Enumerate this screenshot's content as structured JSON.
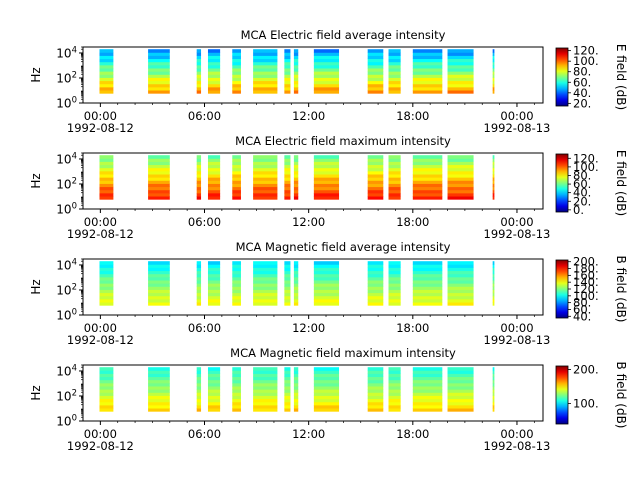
{
  "chart_data": [
    {
      "type": "heatmap",
      "title": "MCA  Electric field average intensity",
      "ylabel": "Hz",
      "y_scale": "log",
      "ylim": [
        1,
        30000
      ],
      "y_ticks": [
        {
          "value": 1,
          "base": "10",
          "exp": "0"
        },
        {
          "value": 100,
          "base": "10",
          "exp": "2"
        },
        {
          "value": 10000,
          "base": "10",
          "exp": "4"
        }
      ],
      "x_ticks": [
        "00:00",
        "06:00",
        "12:00",
        "18:00",
        "00:00"
      ],
      "date_labels": [
        "1992-08-12",
        "1992-08-13"
      ],
      "xlim_hours": [
        -1,
        25.5
      ],
      "colorbar": {
        "label": "E field (dB)",
        "range": [
          15,
          125
        ],
        "ticks": [
          "20.",
          "40.",
          "60.",
          "80.",
          "100.",
          "120."
        ],
        "tick_values": [
          20,
          40,
          60,
          80,
          100,
          120
        ]
      },
      "data_segments_hours": [
        [
          -0.05,
          0.75
        ],
        [
          2.75,
          4.0
        ],
        [
          5.55,
          5.8
        ],
        [
          6.2,
          6.9
        ],
        [
          7.6,
          8.1
        ],
        [
          8.8,
          10.2
        ],
        [
          10.6,
          10.95
        ],
        [
          11.15,
          11.4
        ],
        [
          12.3,
          13.75
        ],
        [
          15.4,
          16.3
        ],
        [
          16.6,
          17.3
        ],
        [
          18.0,
          19.7
        ],
        [
          20.0,
          21.5
        ],
        [
          22.6,
          22.7
        ]
      ],
      "intensity_profile": {
        "low_freq_db": 95,
        "mid_freq_db": 70,
        "high_freq_db": 45
      }
    },
    {
      "type": "heatmap",
      "title": "MCA  Electric field maximum intensity",
      "ylabel": "Hz",
      "y_scale": "log",
      "ylim": [
        1,
        30000
      ],
      "y_ticks": [
        {
          "value": 1,
          "base": "10",
          "exp": "0"
        },
        {
          "value": 100,
          "base": "10",
          "exp": "2"
        },
        {
          "value": 10000,
          "base": "10",
          "exp": "4"
        }
      ],
      "x_ticks": [
        "00:00",
        "06:00",
        "12:00",
        "18:00",
        "00:00"
      ],
      "date_labels": [
        "1992-08-12",
        "1992-08-13"
      ],
      "xlim_hours": [
        -1,
        25.5
      ],
      "colorbar": {
        "label": "E field (dB)",
        "range": [
          -5,
          130
        ],
        "ticks": [
          "0.",
          "20.",
          "40.",
          "60.",
          "80.",
          "100.",
          "120."
        ],
        "tick_values": [
          0,
          20,
          40,
          60,
          80,
          100,
          120
        ]
      },
      "data_segments_hours": [
        [
          -0.05,
          0.75
        ],
        [
          2.75,
          4.0
        ],
        [
          5.55,
          5.8
        ],
        [
          6.2,
          6.9
        ],
        [
          7.6,
          8.1
        ],
        [
          8.8,
          10.2
        ],
        [
          10.6,
          10.95
        ],
        [
          11.15,
          11.4
        ],
        [
          12.3,
          13.75
        ],
        [
          15.4,
          16.3
        ],
        [
          16.6,
          17.3
        ],
        [
          18.0,
          19.7
        ],
        [
          20.0,
          21.5
        ],
        [
          22.6,
          22.7
        ]
      ],
      "intensity_profile": {
        "low_freq_db": 110,
        "mid_freq_db": 85,
        "high_freq_db": 60
      }
    },
    {
      "type": "heatmap",
      "title": "MCA  Magnetic field average intensity",
      "ylabel": "Hz",
      "y_scale": "log",
      "ylim": [
        1,
        30000
      ],
      "y_ticks": [
        {
          "value": 1,
          "base": "10",
          "exp": "0"
        },
        {
          "value": 100,
          "base": "10",
          "exp": "2"
        },
        {
          "value": 10000,
          "base": "10",
          "exp": "4"
        }
      ],
      "x_ticks": [
        "00:00",
        "06:00",
        "12:00",
        "18:00",
        "00:00"
      ],
      "date_labels": [
        "1992-08-12",
        "1992-08-13"
      ],
      "xlim_hours": [
        -1,
        25.5
      ],
      "colorbar": {
        "label": "B field (dB)",
        "range": [
          35,
          205
        ],
        "ticks": [
          "40.",
          "60.",
          "80.",
          "100.",
          "120.",
          "140.",
          "160.",
          "180.",
          "200."
        ],
        "tick_values": [
          40,
          60,
          80,
          100,
          120,
          140,
          160,
          180,
          200
        ]
      },
      "data_segments_hours": [
        [
          -0.05,
          0.75
        ],
        [
          2.75,
          4.0
        ],
        [
          5.55,
          5.8
        ],
        [
          6.2,
          6.9
        ],
        [
          7.6,
          8.1
        ],
        [
          8.8,
          10.2
        ],
        [
          10.6,
          10.95
        ],
        [
          11.15,
          11.4
        ],
        [
          12.3,
          13.75
        ],
        [
          15.4,
          16.3
        ],
        [
          16.6,
          17.3
        ],
        [
          18.0,
          19.7
        ],
        [
          20.0,
          21.5
        ],
        [
          22.6,
          22.7
        ]
      ],
      "intensity_profile": {
        "low_freq_db": 140,
        "mid_freq_db": 120,
        "high_freq_db": 95
      }
    },
    {
      "type": "heatmap",
      "title": "MCA  Magnetic field maximum intensity",
      "ylabel": "Hz",
      "y_scale": "log",
      "ylim": [
        1,
        30000
      ],
      "y_ticks": [
        {
          "value": 1,
          "base": "10",
          "exp": "0"
        },
        {
          "value": 100,
          "base": "10",
          "exp": "2"
        },
        {
          "value": 10000,
          "base": "10",
          "exp": "4"
        }
      ],
      "x_ticks": [
        "00:00",
        "06:00",
        "12:00",
        "18:00",
        "00:00"
      ],
      "date_labels": [
        "1992-08-12",
        "1992-08-13"
      ],
      "xlim_hours": [
        -1,
        25.5
      ],
      "colorbar": {
        "label": "B field (dB)",
        "range": [
          40,
          210
        ],
        "ticks": [
          "100.",
          "200."
        ],
        "tick_values": [
          100,
          200
        ]
      },
      "data_segments_hours": [
        [
          -0.05,
          0.75
        ],
        [
          2.75,
          4.0
        ],
        [
          5.55,
          5.8
        ],
        [
          6.2,
          6.9
        ],
        [
          7.6,
          8.1
        ],
        [
          8.8,
          10.2
        ],
        [
          10.6,
          10.95
        ],
        [
          11.15,
          11.4
        ],
        [
          12.3,
          13.75
        ],
        [
          15.4,
          16.3
        ],
        [
          16.6,
          17.3
        ],
        [
          18.0,
          19.7
        ],
        [
          20.0,
          21.5
        ],
        [
          22.6,
          22.7
        ]
      ],
      "intensity_profile": {
        "low_freq_db": 155,
        "mid_freq_db": 130,
        "high_freq_db": 110
      }
    }
  ]
}
